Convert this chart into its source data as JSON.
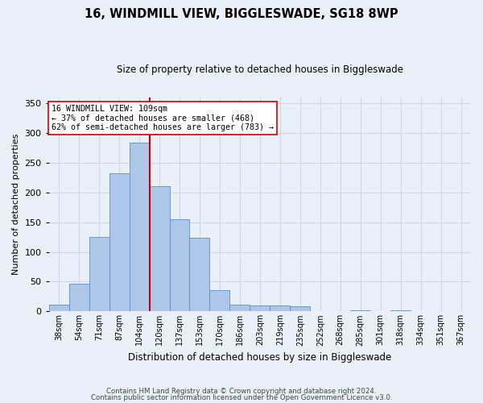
{
  "title1": "16, WINDMILL VIEW, BIGGLESWADE, SG18 8WP",
  "title2": "Size of property relative to detached houses in Biggleswade",
  "xlabel": "Distribution of detached houses by size in Biggleswade",
  "ylabel": "Number of detached properties",
  "annotation_line1": "16 WINDMILL VIEW: 109sqm",
  "annotation_line2": "← 37% of detached houses are smaller (468)",
  "annotation_line3": "62% of semi-detached houses are larger (783) →",
  "footer1": "Contains HM Land Registry data © Crown copyright and database right 2024.",
  "footer2": "Contains public sector information licensed under the Open Government Licence v3.0.",
  "bin_labels": [
    "38sqm",
    "54sqm",
    "71sqm",
    "87sqm",
    "104sqm",
    "120sqm",
    "137sqm",
    "153sqm",
    "170sqm",
    "186sqm",
    "203sqm",
    "219sqm",
    "235sqm",
    "252sqm",
    "268sqm",
    "285sqm",
    "301sqm",
    "318sqm",
    "334sqm",
    "351sqm",
    "367sqm"
  ],
  "bar_values": [
    11,
    46,
    125,
    232,
    283,
    211,
    155,
    124,
    36,
    11,
    10,
    10,
    8,
    0,
    0,
    2,
    0,
    2,
    0,
    0,
    0
  ],
  "bar_color": "#aec6e8",
  "bar_edge_color": "#5b8fc9",
  "vline_x": 5.0,
  "vline_color": "#cc0000",
  "ylim": [
    0,
    360
  ],
  "yticks": [
    0,
    50,
    100,
    150,
    200,
    250,
    300,
    350
  ],
  "grid_color": "#d0d8e8",
  "annotation_box_color": "#ffffff",
  "annotation_box_edge": "#cc0000",
  "bg_color": "#eaf0f8"
}
